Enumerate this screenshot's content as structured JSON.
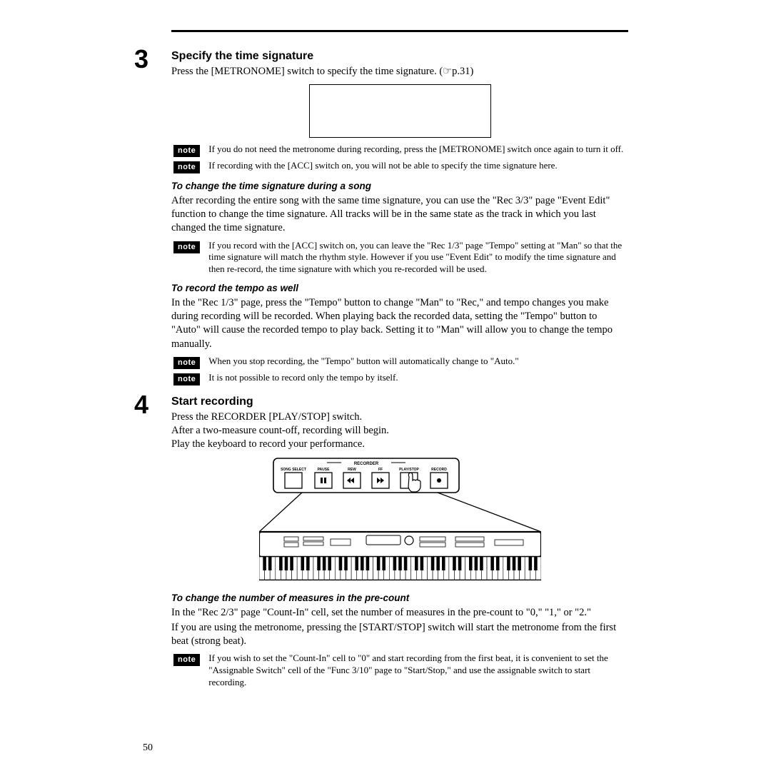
{
  "page_number": "50",
  "step3": {
    "num": "3",
    "title": "Specify the time signature",
    "intro": "Press the [METRONOME] switch to specify the time signature. (☞p.31)",
    "note1": "If you do not need the metronome during recording, press the [METRONOME] switch once again to turn it off.",
    "note2": "If recording with the [ACC] switch on, you will not be able to specify the time signature here.",
    "sub1_title": "To change the time signature during a song",
    "sub1_body": "After recording the entire song with the same time signature, you can use the \"Rec 3/3\" page \"Event Edit\" function to change the time signature. All tracks will be in the same state as the track in which you last changed the time signature.",
    "note3": "If you record with the [ACC] switch on, you can leave the \"Rec 1/3\" page \"Tempo\" setting at \"Man\" so that the time signature will match the rhythm style. However if you use \"Event Edit\" to modify the time signature and then re-record, the time signature with which you re-recorded will be used.",
    "sub2_title": "To record the tempo as well",
    "sub2_body": "In the \"Rec 1/3\" page, press the \"Tempo\" button to change \"Man\" to \"Rec,\" and tempo changes you make during recording will be recorded. When playing back the recorded data, setting the \"Tempo\" button to \"Auto\" will cause the recorded tempo to play back. Setting it to \"Man\" will allow you to change the tempo manually.",
    "note4": "When you stop recording, the \"Tempo\" button will automatically change to \"Auto.\"",
    "note5": "It is not possible to record only the tempo by itself."
  },
  "step4": {
    "num": "4",
    "title": "Start recording",
    "body1": "Press the RECORDER [PLAY/STOP] switch.",
    "body2": "After a two-measure count-off, recording will begin.",
    "body3": "Play the keyboard to record your performance.",
    "sub1_title": "To change the number of measures in the pre-count",
    "sub1_body1": "In the \"Rec 2/3\" page \"Count-In\" cell, set the number of measures in the pre-count to \"0,\" \"1,\" or \"2.\"",
    "sub1_body2": "If you are using the metronome, pressing the [START/STOP] switch will start the metronome from the first beat (strong beat).",
    "note1": "If you wish to set the \"Count-In\" cell to \"0\" and start recording from the first beat, it is convenient to set the \"Assignable Switch\" cell of the \"Func 3/10\" page to \"Start/Stop,\" and use the assignable switch to start recording."
  },
  "figure": {
    "panel_label": "RECORDER",
    "buttons": [
      "SONG SELECT",
      "PAUSE",
      "REW",
      "FF",
      "PLAY/STOP",
      "RECORD"
    ]
  },
  "note_label": "note",
  "colors": {
    "fg": "#000000",
    "bg": "#ffffff"
  }
}
